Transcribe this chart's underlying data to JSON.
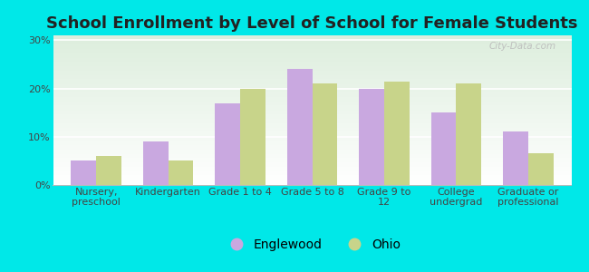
{
  "title": "School Enrollment by Level of School for Female Students",
  "categories": [
    "Nursery,\npreschool",
    "Kindergarten",
    "Grade 1 to 4",
    "Grade 5 to 8",
    "Grade 9 to\n12",
    "College\nundergrad",
    "Graduate or\nprofessional"
  ],
  "englewood": [
    5,
    9,
    17,
    24,
    20,
    15,
    11
  ],
  "ohio": [
    6,
    5,
    20,
    21,
    21.5,
    21,
    6.5
  ],
  "englewood_color": "#c9a8e0",
  "ohio_color": "#c8d48a",
  "background_color": "#00e8e8",
  "grad_top_color": "#ddeedd",
  "grad_bottom_color": "#ffffff",
  "yticks": [
    0,
    10,
    20,
    30
  ],
  "ylim": [
    0,
    31
  ],
  "bar_width": 0.35,
  "title_fontsize": 13,
  "tick_fontsize": 8,
  "legend_fontsize": 10,
  "watermark": "City-Data.com"
}
